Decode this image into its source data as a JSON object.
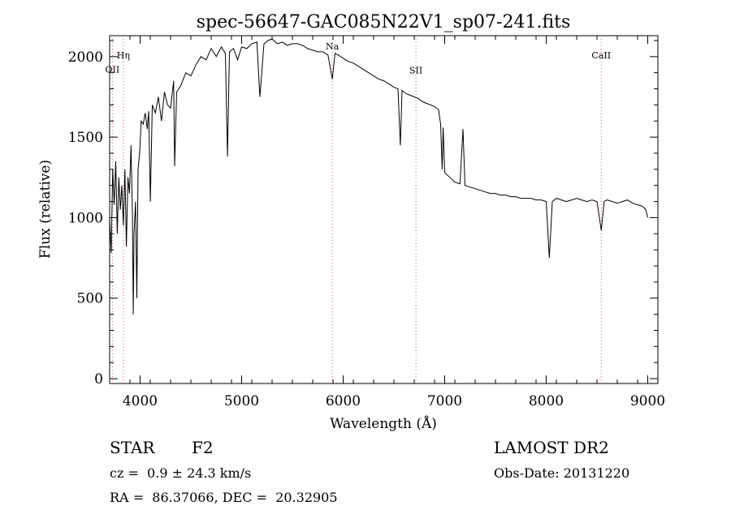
{
  "chart_data": {
    "type": "line",
    "title": "spec-56647-GAC085N22V1_sp07-241.fits",
    "xlabel": "Wavelength (Å)",
    "ylabel": "Flux (relative)",
    "xlim": [
      3700,
      9100
    ],
    "ylim": [
      -30,
      2130
    ],
    "x_ticks": [
      4000,
      5000,
      6000,
      7000,
      8000,
      9000
    ],
    "y_ticks": [
      0,
      500,
      1000,
      1500,
      2000
    ],
    "grid": false,
    "line_color": "#000000",
    "marker_color": "#c06060",
    "lines": [
      {
        "label": "Hη",
        "wavelength": 3835,
        "label_flux": 1990
      },
      {
        "label": "OII",
        "wavelength": 3727,
        "label_flux": 1900
      },
      {
        "label": "Na",
        "wavelength": 5893,
        "label_flux": 2045
      },
      {
        "label": "SII",
        "wavelength": 6717,
        "label_flux": 1895
      },
      {
        "label": "CaII",
        "wavelength": 8542,
        "label_flux": 1990
      }
    ],
    "series": [
      {
        "x": [
          3700,
          3715,
          3730,
          3745,
          3760,
          3775,
          3790,
          3805,
          3820,
          3835,
          3850,
          3865,
          3880,
          3895,
          3910,
          3925,
          3933,
          3940,
          3955,
          3968,
          3980,
          3995,
          4010,
          4030,
          4050,
          4070,
          4085,
          4101,
          4120,
          4150,
          4180,
          4210,
          4240,
          4270,
          4300,
          4330,
          4340,
          4360,
          4400,
          4450,
          4500,
          4550,
          4600,
          4650,
          4700,
          4750,
          4800,
          4840,
          4861,
          4880,
          4920,
          4960,
          5000,
          5050,
          5100,
          5150,
          5180,
          5220,
          5260,
          5300,
          5350,
          5400,
          5450,
          5500,
          5550,
          5600,
          5650,
          5700,
          5750,
          5800,
          5850,
          5893,
          5920,
          5950,
          6000,
          6050,
          6100,
          6150,
          6200,
          6250,
          6300,
          6350,
          6400,
          6450,
          6500,
          6540,
          6563,
          6580,
          6620,
          6660,
          6700,
          6740,
          6780,
          6820,
          6860,
          6900,
          6940,
          6960,
          6975,
          6985,
          7000,
          7050,
          7100,
          7150,
          7180,
          7200,
          7250,
          7300,
          7350,
          7400,
          7450,
          7500,
          7550,
          7600,
          7650,
          7700,
          7750,
          7800,
          7850,
          7900,
          7950,
          8000,
          8030,
          8060,
          8100,
          8150,
          8200,
          8250,
          8300,
          8350,
          8400,
          8450,
          8500,
          8542,
          8570,
          8600,
          8650,
          8700,
          8750,
          8800,
          8850,
          8900,
          8950,
          8980,
          9000
        ],
        "y": [
          1000,
          780,
          1300,
          1080,
          1350,
          900,
          1250,
          1050,
          1200,
          950,
          1300,
          820,
          1250,
          1150,
          1450,
          1000,
          400,
          900,
          1100,
          500,
          1300,
          1400,
          1600,
          1580,
          1650,
          1550,
          1660,
          1100,
          1700,
          1650,
          1750,
          1600,
          1780,
          1700,
          1680,
          1850,
          1320,
          1780,
          1820,
          1900,
          1880,
          1950,
          2000,
          1980,
          2050,
          2000,
          2060,
          2020,
          1380,
          2030,
          2050,
          1980,
          2060,
          2050,
          2080,
          2090,
          1750,
          2080,
          2100,
          2110,
          2080,
          2090,
          2070,
          2080,
          2080,
          2070,
          2050,
          2040,
          2030,
          2030,
          2010,
          1860,
          2020,
          2010,
          1990,
          1970,
          1960,
          1940,
          1920,
          1900,
          1880,
          1860,
          1850,
          1830,
          1810,
          1800,
          1450,
          1790,
          1770,
          1760,
          1750,
          1740,
          1720,
          1710,
          1700,
          1690,
          1670,
          1580,
          1300,
          1560,
          1280,
          1250,
          1220,
          1210,
          1550,
          1200,
          1190,
          1180,
          1170,
          1160,
          1150,
          1150,
          1140,
          1140,
          1130,
          1130,
          1120,
          1120,
          1120,
          1110,
          1110,
          1100,
          750,
          1100,
          1120,
          1110,
          1100,
          1110,
          1120,
          1110,
          1100,
          1110,
          1100,
          920,
          1100,
          1110,
          1100,
          1090,
          1100,
          1110,
          1090,
          1080,
          1070,
          1050,
          1000
        ]
      }
    ]
  },
  "info": {
    "object_class": "STAR",
    "subclass": "F2",
    "survey": "LAMOST DR2",
    "velocity": "cz =  0.9 ± 24.3 km/s",
    "obs_date": "Obs-Date: 20131220",
    "coords": "RA =  86.37066, DEC =  20.32905"
  }
}
